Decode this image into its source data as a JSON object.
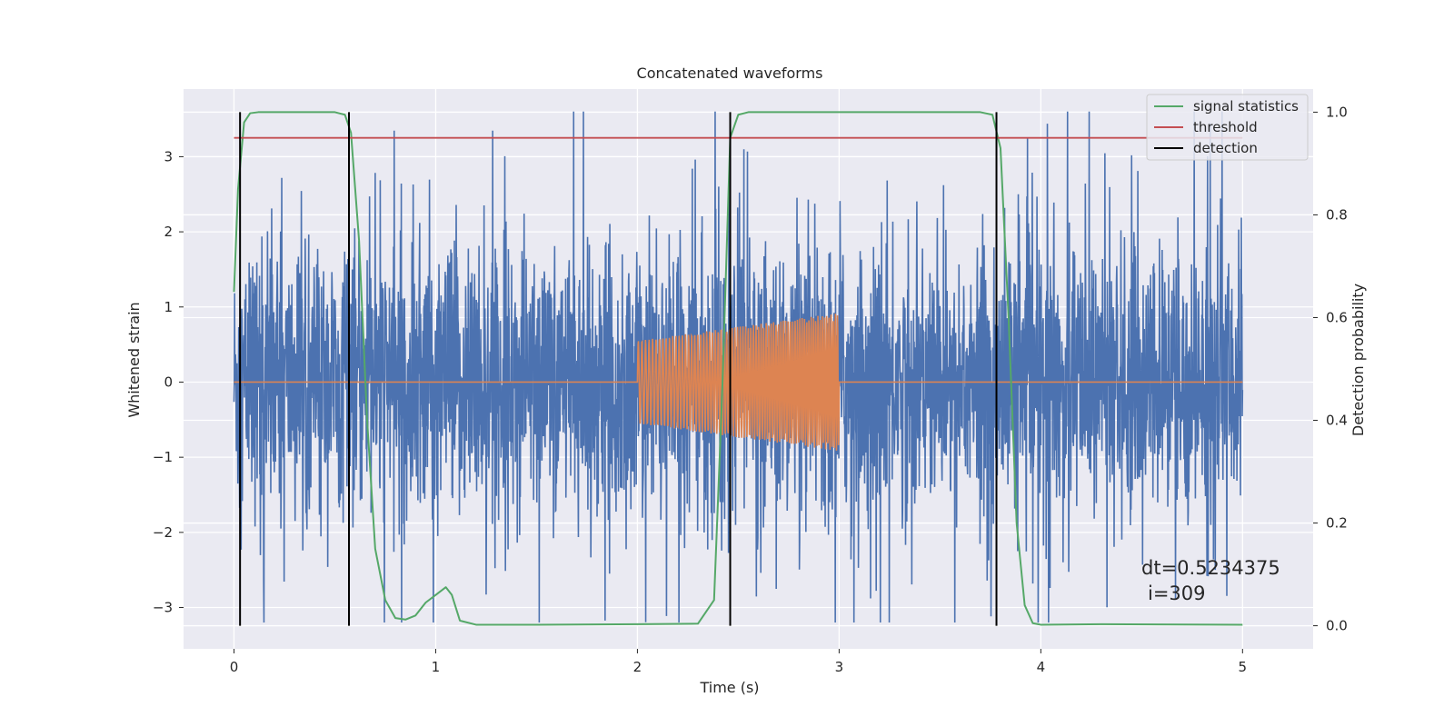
{
  "chart_data": {
    "type": "line",
    "title": "Concatenated waveforms",
    "xlabel": "Time (s)",
    "ylabel_left": "Whitened strain",
    "ylabel_right": "Detection probability",
    "xlim": [
      -0.25,
      5.35
    ],
    "ylim_left": [
      -3.55,
      3.9
    ],
    "ylim_right": [
      -0.045,
      1.045
    ],
    "xticks": [
      0,
      1,
      2,
      3,
      4,
      5
    ],
    "yticks_left": [
      -3,
      -2,
      -1,
      0,
      1,
      2,
      3
    ],
    "yticks_right": [
      0.0,
      0.2,
      0.4,
      0.6,
      0.8,
      1.0
    ],
    "grid": true,
    "legend_position": "top-right",
    "colors": {
      "noise": "#4c72b0",
      "injected_signal": "#dd8452",
      "signal_statistics": "#55a868",
      "threshold": "#c44e52",
      "detection": "#000000",
      "plot_background": "#eaeaf2",
      "grid": "#ffffff"
    },
    "series": [
      {
        "name": "",
        "axis": "left",
        "description_type": "noise",
        "x_range": [
          0,
          5
        ],
        "approx_amplitude": 1.0,
        "peak_max": 3.6,
        "peak_min": -3.2
      },
      {
        "name": "",
        "axis": "left",
        "description_type": "injected_chirp",
        "x_range": [
          2.0,
          3.0
        ],
        "amplitude_start": 0.55,
        "amplitude_end": 0.92,
        "zero_outside": [
          0,
          5
        ]
      },
      {
        "name": "signal statistics",
        "axis": "right",
        "x": [
          0.0,
          0.02,
          0.05,
          0.08,
          0.12,
          0.2,
          0.5,
          0.55,
          0.58,
          0.62,
          0.66,
          0.7,
          0.75,
          0.8,
          0.85,
          0.9,
          0.95,
          1.0,
          1.05,
          1.08,
          1.12,
          1.2,
          1.5,
          2.0,
          2.3,
          2.38,
          2.42,
          2.46,
          2.5,
          2.55,
          2.6,
          3.7,
          3.76,
          3.8,
          3.84,
          3.88,
          3.92,
          3.96,
          4.0,
          4.3,
          5.0
        ],
        "y": [
          0.65,
          0.85,
          0.98,
          0.998,
          1.0,
          1.0,
          1.0,
          0.995,
          0.96,
          0.75,
          0.4,
          0.15,
          0.05,
          0.015,
          0.012,
          0.02,
          0.045,
          0.06,
          0.075,
          0.06,
          0.01,
          0.002,
          0.002,
          0.003,
          0.004,
          0.05,
          0.45,
          0.95,
          0.995,
          1.0,
          1.0,
          1.0,
          0.995,
          0.93,
          0.6,
          0.2,
          0.04,
          0.005,
          0.002,
          0.003,
          0.002
        ]
      },
      {
        "name": "threshold",
        "axis": "right",
        "x": [
          0,
          5
        ],
        "y": [
          0.95,
          0.95
        ]
      },
      {
        "name": "detection",
        "axis": "right",
        "x_values": [
          0.03,
          0.57,
          2.46,
          3.78
        ],
        "y_range": [
          0,
          1
        ]
      }
    ],
    "legend": [
      "signal statistics",
      "threshold",
      "detection"
    ],
    "annotation": {
      "line1": "dt=0.5234375",
      "line2": "i=309",
      "x": 4.5,
      "y_left": -2.55
    }
  }
}
